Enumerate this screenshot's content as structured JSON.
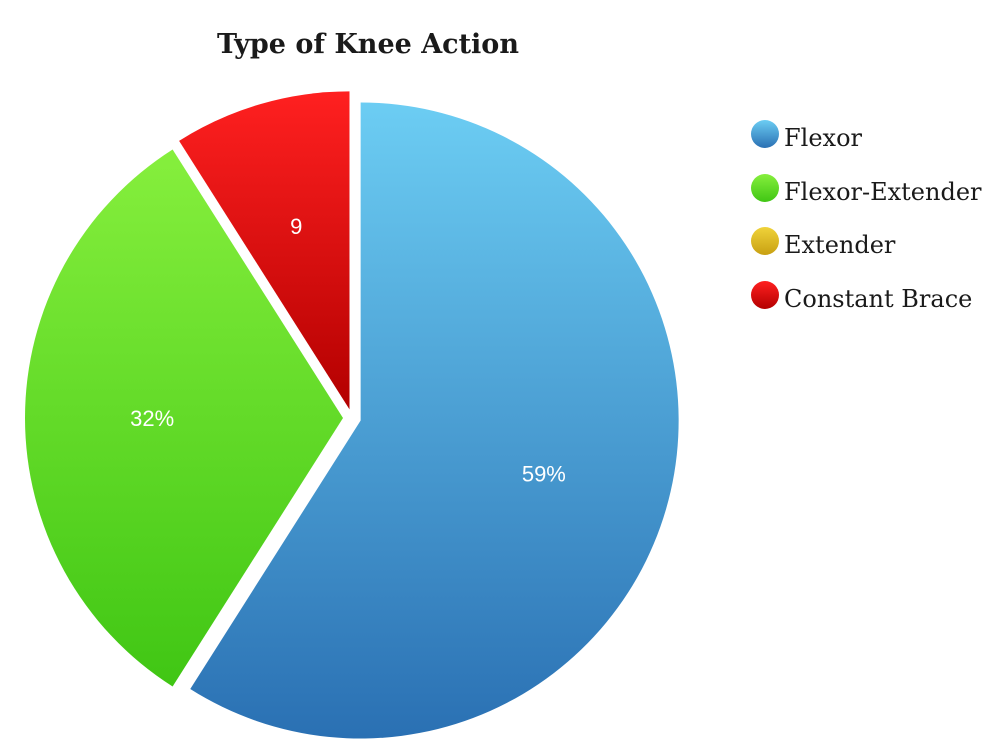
{
  "chart_data": {
    "type": "pie",
    "title": "Type of Knee Action",
    "slices": [
      {
        "name": "Flexor",
        "value": 59,
        "label": "59%",
        "color": "#4aa8de"
      },
      {
        "name": "Flexor-Extender",
        "value": 32,
        "label": "32%",
        "color": "#5ee022"
      },
      {
        "name": "Extender",
        "value": 0,
        "label": "",
        "color": "#e3bf1e"
      },
      {
        "name": "Constant Brace",
        "value": 9,
        "label": "9",
        "color": "#e01010"
      }
    ],
    "legend_position": "right"
  }
}
